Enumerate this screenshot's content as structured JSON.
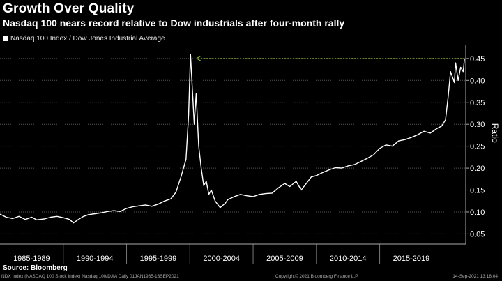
{
  "header": {
    "title": "Growth Over Quality",
    "subtitle": "Nasdaq 100 nears record relative to Dow industrials after four-month rally"
  },
  "legend": {
    "series_label": "Nasdaq 100 Index / Dow Jones Industrial Average"
  },
  "footer": {
    "source": "Source: Bloomberg",
    "left_note": "NDX Index (NASDAQ 100 Stock Index) Nasdaq 100/DJIA  Daily 01JAN1985-13SEP2021",
    "copyright": "Copyright© 2021 Bloomberg Finance L.P.",
    "timestamp": "14-Sep-2021 13:18:04"
  },
  "colors": {
    "background": "#000000",
    "line": "#ffffff",
    "arrow": "#9acd32",
    "grid": "#555555"
  },
  "chart_data": {
    "type": "line",
    "ylabel": "Ratio",
    "ylim": [
      0.03,
      0.48
    ],
    "yticks": [
      "0.05",
      "0.10",
      "0.15",
      "0.20",
      "0.25",
      "0.30",
      "0.35",
      "0.40",
      "0.45"
    ],
    "xlim": [
      1985.0,
      2021.8
    ],
    "xticks": [
      "1985-1989",
      "1990-1994",
      "1995-1999",
      "2000-2004",
      "2005-2009",
      "2010-2014",
      "2015-2019"
    ],
    "annotation": {
      "type": "arrow",
      "from": [
        2021.7,
        0.45
      ],
      "to": [
        2000.2,
        0.45
      ],
      "dashed": true
    },
    "series": [
      {
        "x": [
          1985.0,
          1985.5,
          1986.0,
          1986.5,
          1987.0,
          1987.5,
          1987.9,
          1988.5,
          1989.0,
          1989.5,
          1990.0,
          1990.5,
          1990.8,
          1991.2,
          1991.6,
          1992.0,
          1992.5,
          1993.0,
          1993.5,
          1994.0,
          1994.5,
          1995.0,
          1995.5,
          1996.0,
          1996.5,
          1997.0,
          1997.5,
          1998.0,
          1998.5,
          1998.9,
          1999.3,
          1999.7,
          1999.9,
          2000.05,
          2000.2,
          2000.35,
          2000.5,
          2000.7,
          2000.9,
          2001.1,
          2001.3,
          2001.5,
          2001.7,
          2002.0,
          2002.4,
          2002.8,
          2003.0,
          2003.5,
          2004.0,
          2004.5,
          2005.0,
          2005.5,
          2006.0,
          2006.5,
          2007.0,
          2007.5,
          2007.9,
          2008.4,
          2008.8,
          2009.2,
          2009.6,
          2010.0,
          2010.5,
          2011.0,
          2011.5,
          2012.0,
          2012.5,
          2013.0,
          2013.5,
          2014.0,
          2014.5,
          2015.0,
          2015.5,
          2016.0,
          2016.5,
          2017.0,
          2017.5,
          2018.0,
          2018.5,
          2019.0,
          2019.5,
          2019.9,
          2020.2,
          2020.4,
          2020.6,
          2020.9,
          2021.0,
          2021.2,
          2021.4,
          2021.6,
          2021.7
        ],
        "y": [
          0.095,
          0.088,
          0.085,
          0.09,
          0.083,
          0.088,
          0.082,
          0.084,
          0.088,
          0.09,
          0.087,
          0.083,
          0.075,
          0.083,
          0.09,
          0.094,
          0.096,
          0.098,
          0.101,
          0.103,
          0.101,
          0.108,
          0.112,
          0.114,
          0.116,
          0.113,
          0.118,
          0.125,
          0.13,
          0.145,
          0.18,
          0.22,
          0.32,
          0.46,
          0.38,
          0.3,
          0.37,
          0.25,
          0.2,
          0.16,
          0.17,
          0.14,
          0.15,
          0.125,
          0.11,
          0.12,
          0.128,
          0.135,
          0.14,
          0.137,
          0.135,
          0.14,
          0.142,
          0.143,
          0.155,
          0.165,
          0.158,
          0.17,
          0.15,
          0.165,
          0.18,
          0.183,
          0.19,
          0.196,
          0.201,
          0.2,
          0.205,
          0.208,
          0.215,
          0.222,
          0.23,
          0.245,
          0.253,
          0.25,
          0.262,
          0.265,
          0.27,
          0.276,
          0.284,
          0.28,
          0.29,
          0.296,
          0.31,
          0.36,
          0.42,
          0.395,
          0.44,
          0.4,
          0.43,
          0.42,
          0.45
        ]
      }
    ]
  }
}
